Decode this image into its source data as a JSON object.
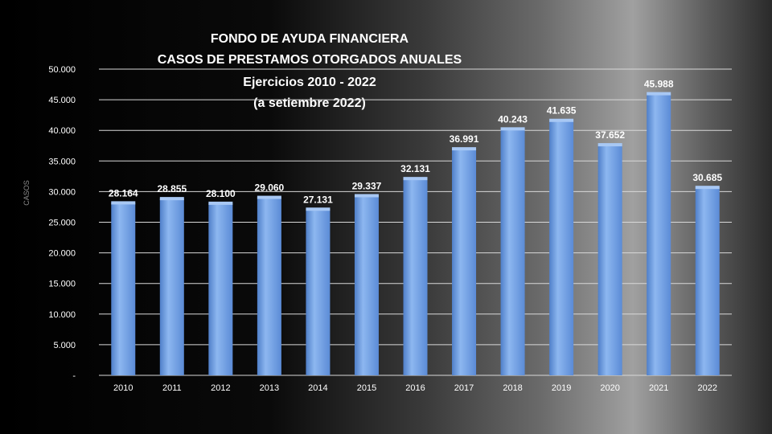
{
  "chart_data": {
    "type": "bar",
    "title": [
      "FONDO DE AYUDA FINANCIERA",
      "CASOS DE PRESTAMOS  OTORGADOS  ANUALES",
      "Ejercicios  2010 - 2022",
      "(a setiembre 2022)"
    ],
    "ylabel": "CASOS",
    "xlabel": "",
    "ylim": [
      0,
      50000
    ],
    "ytick_values": [
      0,
      5000,
      10000,
      15000,
      20000,
      25000,
      30000,
      35000,
      40000,
      45000,
      50000
    ],
    "ytick_labels": [
      "-",
      "5.000",
      "10.000",
      "15.000",
      "20.000",
      "25.000",
      "30.000",
      "35.000",
      "40.000",
      "45.000",
      "50.000"
    ],
    "categories": [
      "2010",
      "2011",
      "2012",
      "2013",
      "2014",
      "2015",
      "2016",
      "2017",
      "2018",
      "2019",
      "2020",
      "2021",
      "2022"
    ],
    "values": [
      28164,
      28855,
      28100,
      29060,
      27131,
      29337,
      32131,
      36991,
      40243,
      41635,
      37652,
      45988,
      30685
    ],
    "data_labels": [
      "28.164",
      "28.855",
      "28.100",
      "29.060",
      "27.131",
      "29.337",
      "32.131",
      "36.991",
      "40.243",
      "41.635",
      "37.652",
      "45.988",
      "30.685"
    ],
    "grid": true,
    "legend": "none",
    "bar_color": "#6f9fe3"
  }
}
